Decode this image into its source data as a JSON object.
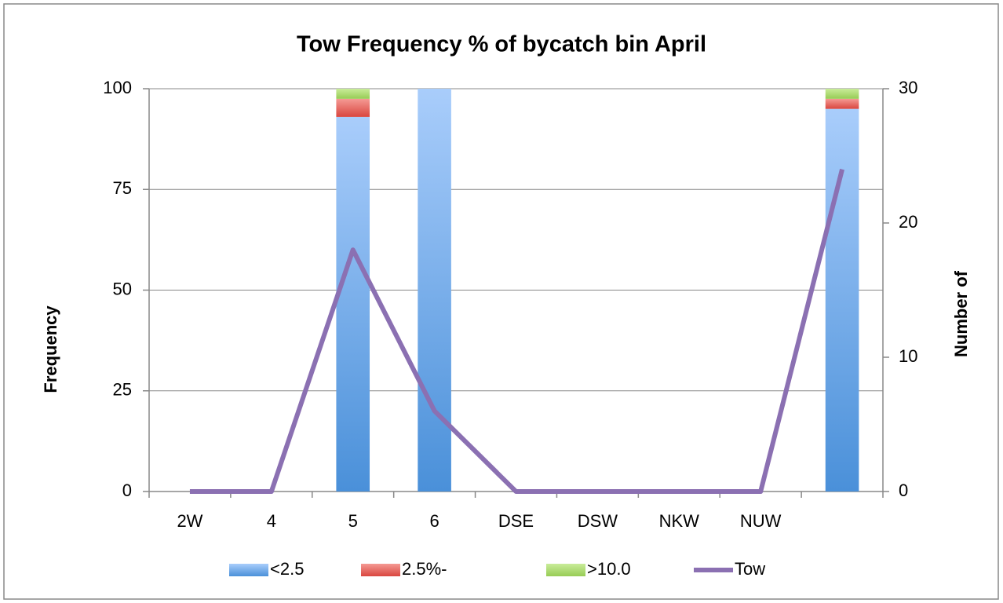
{
  "chart_data": {
    "type": "bar",
    "stacked": true,
    "title": "Tow Frequency % of bycatch bin April",
    "y_label": "Frequency",
    "y2_label": "Number of",
    "categories": [
      "2W",
      "4",
      "5",
      "6",
      "DSE",
      "DSW",
      "NKW",
      "NUW",
      null
    ],
    "series": [
      {
        "name": "<2.5",
        "color": "#5b9be0",
        "values": [
          0,
          0,
          93,
          100,
          0,
          0,
          0,
          0,
          95
        ]
      },
      {
        "name": "2.5%-",
        "color": "#e8605a",
        "values": [
          0,
          0,
          4.5,
          0,
          0,
          0,
          0,
          0,
          2.5
        ]
      },
      {
        "name": ">10.0",
        "color": "#a9d870",
        "values": [
          0,
          0,
          2.5,
          0,
          0,
          0,
          0,
          0,
          2.5
        ]
      },
      {
        "name": "Tow",
        "type": "line",
        "axis": "y2",
        "color": "#8b70b2",
        "values": [
          0,
          0,
          18,
          6,
          0,
          0,
          0,
          0,
          24
        ]
      }
    ],
    "ylim": [
      0,
      100
    ],
    "yticks": [
      0,
      25,
      50,
      75,
      100
    ],
    "y2lim": [
      0,
      30
    ],
    "y2ticks": [
      0,
      10,
      20,
      30
    ],
    "grid": true,
    "legend": "bottom"
  }
}
